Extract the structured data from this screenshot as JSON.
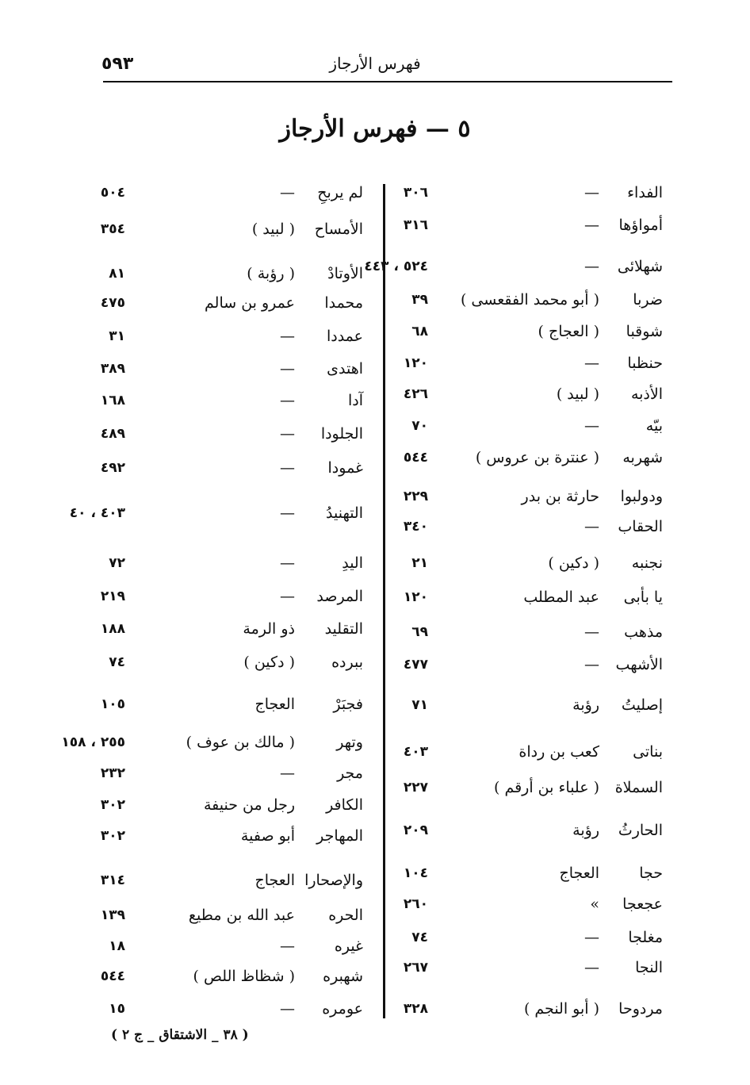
{
  "running_head": {
    "page_number": "٥٩٣",
    "title": "فهرس الأرجاز"
  },
  "heading": "٥ — فهرس الأرجاز",
  "right_column": [
    {
      "word": "الفداء",
      "author": "—",
      "pages": "٣٠٦"
    },
    {
      "word": "أمواؤها",
      "author": "—",
      "pages": "٣١٦"
    },
    {
      "word": "شهلائى",
      "author": "—",
      "pages": "٥٢٤ ، ٤٤٣"
    },
    {
      "word": "ضربا",
      "author": "( أبو محمد الفقعسى )",
      "pages": "٣٩"
    },
    {
      "word": "شوقبا",
      "author": "( العجاج )",
      "pages": "٦٨"
    },
    {
      "word": "حنظبا",
      "author": "—",
      "pages": "١٢٠"
    },
    {
      "word": "الأذبه",
      "author": "( لبيد )",
      "pages": "٤٢٦"
    },
    {
      "word": "بيّه",
      "author": "—",
      "pages": "٧٠"
    },
    {
      "word": "شهربه",
      "author": "( عنترة بن عروس )",
      "pages": "٥٤٤"
    },
    {
      "word": "ودولبوا",
      "author": "حارثة بن بدر",
      "pages": "٢٢٩"
    },
    {
      "word": "الحقاب",
      "author": "—",
      "pages": "٣٤٠"
    },
    {
      "word": "نجنبه",
      "author": "( دكين )",
      "pages": "٢١"
    },
    {
      "word": "يا بأبى",
      "author": "عبد المطلب",
      "pages": "١٢٠"
    },
    {
      "word": "مذهب",
      "author": "—",
      "pages": "٦٩"
    },
    {
      "word": "الأشهب",
      "author": "—",
      "pages": "٤٧٧"
    },
    {
      "word": "إصليتُ",
      "author": "رؤبة",
      "pages": "٧١"
    },
    {
      "word": "بناتى",
      "author": "كعب بن رداة",
      "pages": "٤٠٣"
    },
    {
      "word": "السملاة",
      "author": "( علباء بن أرقم )",
      "pages": "٢٢٧"
    },
    {
      "word": "الحارثُ",
      "author": "رؤبة",
      "pages": "٢٠٩"
    },
    {
      "word": "حجا",
      "author": "العجاج",
      "pages": "١٠٤"
    },
    {
      "word": "عجعجا",
      "author": "»",
      "pages": "٢٦٠"
    },
    {
      "word": "مغلجا",
      "author": "—",
      "pages": "٧٤"
    },
    {
      "word": "النجا",
      "author": "—",
      "pages": "٢٦٧"
    },
    {
      "word": "مردوحا",
      "author": "( أبو النجم )",
      "pages": "٣٢٨"
    }
  ],
  "left_column": [
    {
      "word": "لم يربحِ",
      "author": "—",
      "pages": "٥٠٤"
    },
    {
      "word": "الأمساح",
      "author": "( لبيد )",
      "pages": "٣٥٤"
    },
    {
      "word": "الأوتادْ",
      "author": "( رؤبة )",
      "pages": "٨١"
    },
    {
      "word": "محمدا",
      "author": "عمرو بن سالم",
      "pages": "٤٧٥"
    },
    {
      "word": "عمددا",
      "author": "—",
      "pages": "٣١"
    },
    {
      "word": "اهتدى",
      "author": "—",
      "pages": "٣٨٩"
    },
    {
      "word": "آدا",
      "author": "—",
      "pages": "١٦٨"
    },
    {
      "word": "الجلودا",
      "author": "—",
      "pages": "٤٨٩"
    },
    {
      "word": "غمودا",
      "author": "—",
      "pages": "٤٩٢"
    },
    {
      "word": "التهنيدُ",
      "author": "—",
      "pages": "٤٠٣ ، ٤٠"
    },
    {
      "word": "اليدِ",
      "author": "—",
      "pages": "٧٢"
    },
    {
      "word": "المرصد",
      "author": "—",
      "pages": "٢١٩"
    },
    {
      "word": "التقليد",
      "author": "ذو الرمة",
      "pages": "١٨٨"
    },
    {
      "word": "ببرده",
      "author": "( دكين )",
      "pages": "٧٤"
    },
    {
      "word": "فجبَرْ",
      "author": "العجاج",
      "pages": "١٠٥"
    },
    {
      "word": "وتهر",
      "author": "( مالك بن عوف )",
      "pages": "٢٥٥ ، ١٥٨"
    },
    {
      "word": "مجر",
      "author": "—",
      "pages": "٢٣٢"
    },
    {
      "word": "الكافر",
      "author": "رجل من حنيفة",
      "pages": "٣٠٢"
    },
    {
      "word": "المهاجر",
      "author": "أبو صفية",
      "pages": "٣٠٢"
    },
    {
      "word": "والإصحارا",
      "author": "العجاج",
      "pages": "٣١٤"
    },
    {
      "word": "الحره",
      "author": "عبد الله بن مطيع",
      "pages": "١٣٩"
    },
    {
      "word": "غيره",
      "author": "—",
      "pages": "١٨"
    },
    {
      "word": "شهبره",
      "author": "( شظاظ اللص )",
      "pages": "٥٤٤"
    },
    {
      "word": "عومره",
      "author": "—",
      "pages": "١٥"
    }
  ],
  "footer": "( ٣٨ _ الاشتقاق _ ج ٢ )"
}
